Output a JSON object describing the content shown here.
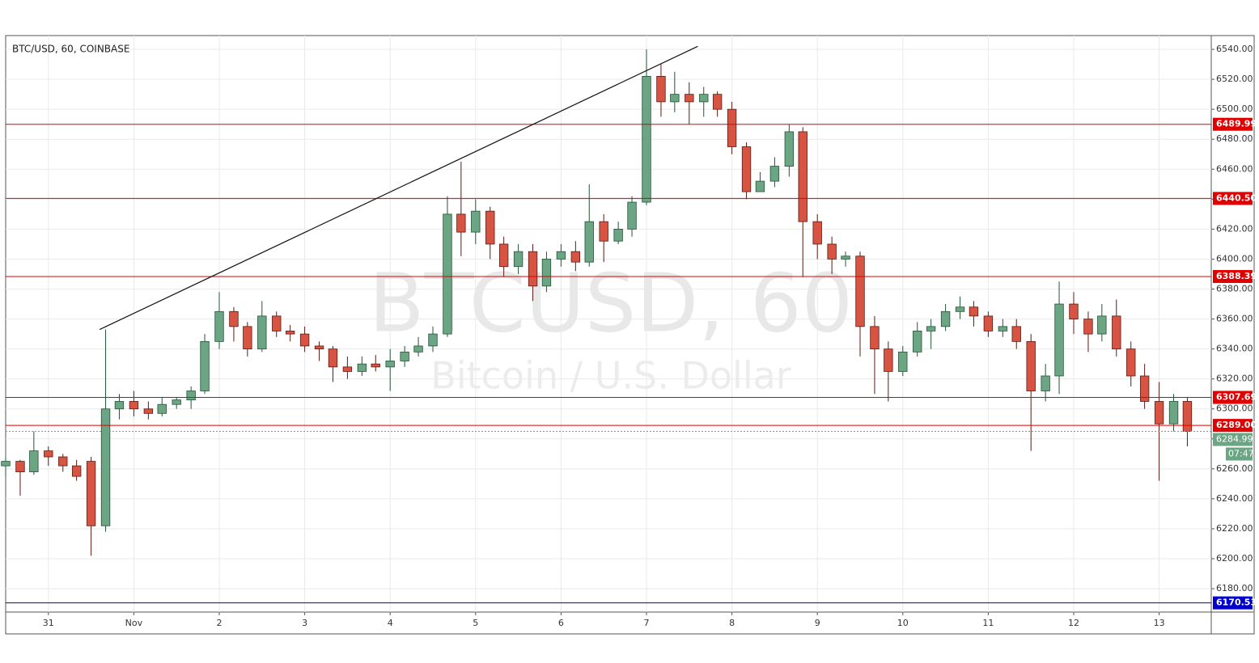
{
  "chart_data": {
    "type": "candlestick",
    "title": "BTC/USD, 60, COINBASE",
    "watermark": "BTCUSD, 60",
    "watermark_subtitle": "Bitcoin / U.S. Dollar",
    "up_color": "#6ba583",
    "down_color": "#d75442",
    "xlim": [
      -0.5,
      13.61
    ],
    "ylim": [
      6164.4,
      6549.2
    ],
    "xticks": [
      {
        "value": 0,
        "label": "31"
      },
      {
        "value": 1,
        "label": "Nov"
      },
      {
        "value": 2,
        "label": "2"
      },
      {
        "value": 3,
        "label": "3"
      },
      {
        "value": 4,
        "label": "4"
      },
      {
        "value": 5,
        "label": "5"
      },
      {
        "value": 6,
        "label": "6"
      },
      {
        "value": 7,
        "label": "7"
      },
      {
        "value": 8,
        "label": "8"
      },
      {
        "value": 9,
        "label": "9"
      },
      {
        "value": 10,
        "label": "10"
      },
      {
        "value": 11,
        "label": "11"
      },
      {
        "value": 12,
        "label": "12"
      },
      {
        "value": 13,
        "label": "13"
      }
    ],
    "yticks": [
      {
        "value": 6180,
        "label": "6180.00"
      },
      {
        "value": 6200,
        "label": "6200.00"
      },
      {
        "value": 6220,
        "label": "6220.00"
      },
      {
        "value": 6240,
        "label": "6240.00"
      },
      {
        "value": 6260,
        "label": "6260.00"
      },
      {
        "value": 6280,
        "label": "6280.00"
      },
      {
        "value": 6300,
        "label": "6300.00"
      },
      {
        "value": 6320,
        "label": "6320.00"
      },
      {
        "value": 6340,
        "label": "6340.00"
      },
      {
        "value": 6360,
        "label": "6360.00"
      },
      {
        "value": 6380,
        "label": "6380.00"
      },
      {
        "value": 6400,
        "label": "6400.00"
      },
      {
        "value": 6420,
        "label": "6420.00"
      },
      {
        "value": 6440,
        "label": "6440.00"
      },
      {
        "value": 6460,
        "label": "6460.00"
      },
      {
        "value": 6480,
        "label": "6480.00"
      },
      {
        "value": 6500,
        "label": "6500.00"
      },
      {
        "value": 6520,
        "label": "6520.00"
      },
      {
        "value": 6540,
        "label": "6540.00"
      }
    ],
    "hlines": [
      {
        "value": 6489.99,
        "label": "6489.99",
        "color": "#e00000"
      },
      {
        "value": 6440.5,
        "label": "6440.50",
        "color": "#e00000"
      },
      {
        "value": 6388.39,
        "label": "6388.39",
        "color": "#e00000"
      },
      {
        "value": 6307.69,
        "label": "6307.69",
        "color": "#e00000"
      },
      {
        "value": 6289,
        "label": "6289.00",
        "color": "#e00000"
      },
      {
        "value": 6170.53,
        "label": "6170.53",
        "color": "#0000cc"
      }
    ],
    "price_line": {
      "value": 6284.99,
      "label": "6284.99",
      "countdown": "07:47",
      "color": "#6ba583"
    },
    "trendline": {
      "x": [
        0.6,
        7.6
      ],
      "y": [
        6353,
        6542
      ]
    },
    "x": [
      -0.5,
      -0.33,
      -0.17,
      0,
      0.17,
      0.33,
      0.5,
      0.67,
      0.83,
      1,
      1.17,
      1.33,
      1.5,
      1.67,
      1.83,
      2,
      2.17,
      2.33,
      2.5,
      2.67,
      2.83,
      3,
      3.17,
      3.33,
      3.5,
      3.67,
      3.83,
      4,
      4.17,
      4.33,
      4.5,
      4.67,
      4.83,
      5,
      5.17,
      5.33,
      5.5,
      5.67,
      5.83,
      6,
      6.17,
      6.33,
      6.5,
      6.67,
      6.83,
      7,
      7.17,
      7.33,
      7.5,
      7.67,
      7.83,
      8,
      8.17,
      8.33,
      8.5,
      8.67,
      8.83,
      9,
      9.17,
      9.33,
      9.5,
      9.67,
      9.83,
      10,
      10.17,
      10.33,
      10.5,
      10.67,
      10.83,
      11,
      11.17,
      11.33,
      11.5,
      11.67,
      11.83,
      12,
      12.17,
      12.33,
      12.5,
      12.67,
      12.83,
      13,
      13.17,
      13.33
    ],
    "open": [
      6262,
      6265,
      6258,
      6272,
      6268,
      6262,
      6265,
      6222,
      6300,
      6305,
      6300,
      6297,
      6303,
      6306,
      6312,
      6345,
      6365,
      6355,
      6340,
      6362,
      6352,
      6350,
      6342,
      6340,
      6328,
      6325,
      6330,
      6328,
      6332,
      6338,
      6342,
      6350,
      6430,
      6418,
      6432,
      6410,
      6395,
      6405,
      6382,
      6400,
      6405,
      6398,
      6425,
      6412,
      6420,
      6438,
      6522,
      6505,
      6510,
      6505,
      6510,
      6500,
      6475,
      6445,
      6452,
      6462,
      6485,
      6425,
      6410,
      6400,
      6402,
      6355,
      6340,
      6325,
      6338,
      6352,
      6355,
      6365,
      6368,
      6362,
      6352,
      6355,
      6345,
      6312,
      6322,
      6370,
      6360,
      6350,
      6362,
      6340,
      6322,
      6305,
      6290,
      6305
    ],
    "high": [
      6268,
      6266,
      6285,
      6275,
      6270,
      6266,
      6268,
      6353,
      6310,
      6312,
      6305,
      6308,
      6308,
      6315,
      6350,
      6378,
      6368,
      6358,
      6372,
      6365,
      6356,
      6355,
      6345,
      6342,
      6335,
      6335,
      6336,
      6340,
      6342,
      6348,
      6355,
      6442,
      6465,
      6440,
      6435,
      6415,
      6410,
      6410,
      6405,
      6410,
      6412,
      6450,
      6430,
      6425,
      6442,
      6540,
      6530,
      6525,
      6518,
      6515,
      6512,
      6505,
      6478,
      6458,
      6468,
      6490,
      6488,
      6430,
      6415,
      6405,
      6405,
      6362,
      6345,
      6342,
      6358,
      6360,
      6370,
      6375,
      6372,
      6365,
      6360,
      6360,
      6350,
      6330,
      6385,
      6378,
      6365,
      6370,
      6373,
      6345,
      6330,
      6318,
      6310,
      6308
    ],
    "low": [
      6255,
      6242,
      6256,
      6262,
      6258,
      6252,
      6202,
      6218,
      6293,
      6295,
      6293,
      6295,
      6300,
      6300,
      6310,
      6340,
      6345,
      6335,
      6338,
      6348,
      6345,
      6338,
      6332,
      6318,
      6320,
      6322,
      6325,
      6312,
      6328,
      6335,
      6338,
      6348,
      6402,
      6410,
      6400,
      6388,
      6390,
      6372,
      6378,
      6395,
      6392,
      6395,
      6398,
      6410,
      6415,
      6436,
      6495,
      6498,
      6490,
      6495,
      6495,
      6470,
      6440,
      6445,
      6448,
      6455,
      6388,
      6400,
      6390,
      6395,
      6335,
      6310,
      6305,
      6322,
      6335,
      6340,
      6352,
      6360,
      6355,
      6348,
      6348,
      6340,
      6272,
      6305,
      6310,
      6350,
      6338,
      6345,
      6335,
      6315,
      6300,
      6252,
      6285,
      6275
    ],
    "close": [
      6265,
      6258,
      6272,
      6268,
      6262,
      6255,
      6222,
      6300,
      6305,
      6300,
      6297,
      6303,
      6306,
      6312,
      6345,
      6365,
      6355,
      6340,
      6362,
      6352,
      6350,
      6342,
      6340,
      6328,
      6325,
      6330,
      6328,
      6332,
      6338,
      6342,
      6350,
      6430,
      6418,
      6432,
      6410,
      6395,
      6405,
      6382,
      6400,
      6405,
      6398,
      6425,
      6412,
      6420,
      6438,
      6522,
      6505,
      6510,
      6505,
      6510,
      6500,
      6475,
      6445,
      6452,
      6462,
      6485,
      6425,
      6410,
      6400,
      6402,
      6355,
      6340,
      6325,
      6338,
      6352,
      6355,
      6365,
      6368,
      6362,
      6352,
      6355,
      6345,
      6312,
      6322,
      6370,
      6360,
      6350,
      6362,
      6340,
      6322,
      6305,
      6290,
      6305,
      6285
    ]
  }
}
